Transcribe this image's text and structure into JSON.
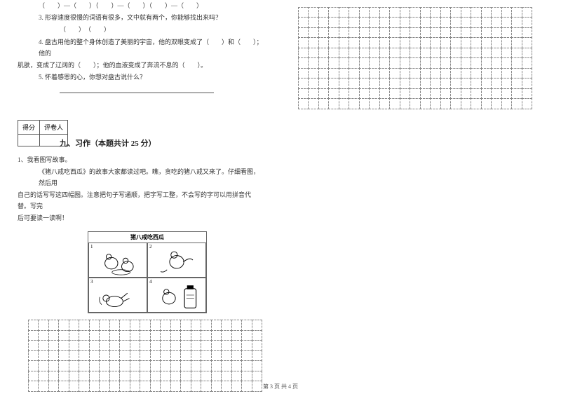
{
  "left": {
    "q3_line1": "（　　）—（　　）（　　）—（　　）（　　）—（　　）",
    "q3_text": "3. 形容速度很慢的词语有很多，文中就有两个，你能够找出来吗？",
    "q3_blanks": "（　　）　（　　）",
    "q4_line1": "4. 盘古用他的整个身体创造了美丽的宇宙，他的双眼变成了（　　）和（　　）；他的",
    "q4_line2": "肌肤，变成了辽阔的（　　）；他的血液变成了奔流不息的（　　）。",
    "q5_text": "5. 怀着感恩的心，你想对盘古说什么？",
    "score_label1": "得分",
    "score_label2": "评卷人",
    "section_title": "九、习作（本题共计 25 分）",
    "instr_num": "1、我看图写故事。",
    "instr_p1": "《猪八戒吃西瓜》的故事大家都读过吧。瞧，贪吃的猪八戒又来了。仔细看图，然后用",
    "instr_p2": "自己的话写写这四幅图。注意把句子写通顺，把字写工整，不会写的字可以用拼音代替。写完",
    "instr_p3": "后可要读一读啊！",
    "illus_title": "猪八戒吃西瓜",
    "grid": {
      "rows": 7,
      "cols": 23
    }
  },
  "right": {
    "grid": {
      "rows": 10,
      "cols": 23
    }
  },
  "footer": "第 3 页 共 4 页",
  "style": {
    "cell_size": 15.5,
    "border_color": "#888888",
    "text_color": "#333333",
    "background": "#ffffff"
  }
}
